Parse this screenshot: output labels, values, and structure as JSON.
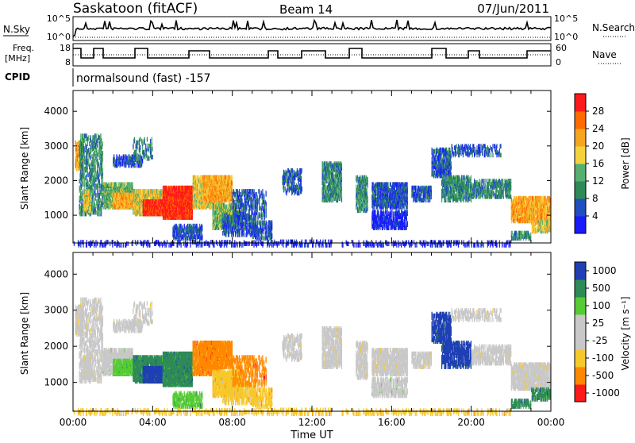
{
  "header": {
    "station": "Saskatoon (fitACF)",
    "beam": "Beam 14",
    "date": "07/Jun/2011"
  },
  "sky_panel": {
    "left_label": "N.Sky",
    "right_label": "N.Search",
    "left_ticks": [
      "10^5",
      "10^0"
    ],
    "right_ticks": [
      "10^5",
      "10^0"
    ]
  },
  "freq_panel": {
    "left_label_line1": "Freq.",
    "left_label_line2": "[MHz]",
    "right_label": "Nave",
    "left_ticks": [
      "18",
      "8"
    ],
    "right_ticks": [
      "60",
      "0"
    ]
  },
  "cpid": {
    "label": "CPID",
    "value": "normalsound (fast) -157"
  },
  "colors": {
    "power_scale": [
      "#1a1aff",
      "#1f4fbf",
      "#2e8b57",
      "#55b070",
      "#f4d23c",
      "#f7a51f",
      "#ff6a00",
      "#ff1a1a"
    ],
    "velocity_scale": [
      "#ff1a1a",
      "#ff8800",
      "#f7c82a",
      "#c8c8c8",
      "#c8c8c8",
      "#55cc33",
      "#2e8b57",
      "#1f3fb5"
    ]
  },
  "chart_data": [
    {
      "type": "heatmap",
      "name": "power",
      "xlabel": "",
      "ylabel": "Slant Range [km]",
      "yticks": [
        "1000",
        "2000",
        "3000",
        "4000"
      ],
      "ylim": [
        200,
        4600
      ],
      "xlim": [
        0,
        24
      ],
      "colorbar_label": "Power [dB]",
      "colorbar_ticks": [
        "4",
        "8",
        "12",
        "16",
        "20",
        "24",
        "28"
      ],
      "colorbar_range": [
        0,
        32
      ]
    },
    {
      "type": "heatmap",
      "name": "velocity",
      "xlabel": "Time UT",
      "ylabel": "Slant Range [km]",
      "xticks": [
        "00:00",
        "04:00",
        "08:00",
        "12:00",
        "16:00",
        "20:00",
        "00:00"
      ],
      "yticks": [
        "1000",
        "2000",
        "3000",
        "4000"
      ],
      "ylim": [
        200,
        4600
      ],
      "xlim": [
        0,
        24
      ],
      "colorbar_label": "Velocity [m s⁻¹]",
      "colorbar_ticks": [
        "1000",
        "500",
        "100",
        "25",
        "-25",
        "-100",
        "-500",
        "-1000"
      ]
    }
  ]
}
